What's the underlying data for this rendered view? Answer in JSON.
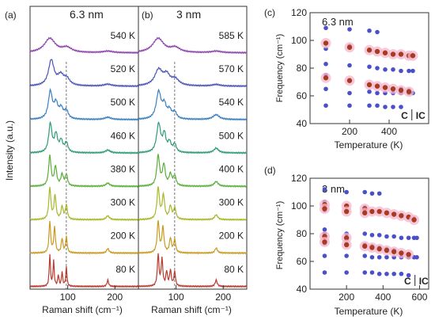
{
  "chart_data": [
    {
      "id": "a",
      "type": "line",
      "panel_label": "(a)",
      "title": "6.3 nm",
      "xlabel": "Raman shift (cm⁻¹)",
      "ylabel": "Intensity (a.u.)",
      "xlim": [
        20,
        250
      ],
      "xticks": [
        100,
        200
      ],
      "dashed_line_x": 97,
      "series": [
        {
          "name": "540 K",
          "color": "#8e44ad",
          "peaks": [
            [
              62,
              0.45,
              14
            ],
            [
              98,
              0.15,
              12
            ],
            [
              185,
              0.05,
              12
            ]
          ]
        },
        {
          "name": "520 K",
          "color": "#4a55b8",
          "peaks": [
            [
              65,
              0.8,
              7
            ],
            [
              85,
              0.3,
              8
            ],
            [
              98,
              0.2,
              8
            ],
            [
              185,
              0.06,
              10
            ]
          ]
        },
        {
          "name": "500 K",
          "color": "#3a7fc0",
          "peaks": [
            [
              63,
              0.85,
              5
            ],
            [
              75,
              0.45,
              5
            ],
            [
              86,
              0.3,
              5
            ],
            [
              97,
              0.25,
              5
            ],
            [
              185,
              0.07,
              8
            ]
          ]
        },
        {
          "name": "460 K",
          "color": "#2e9a7a",
          "peaks": [
            [
              63,
              0.9,
              4
            ],
            [
              75,
              0.55,
              4
            ],
            [
              86,
              0.35,
              4
            ],
            [
              97,
              0.3,
              4
            ],
            [
              185,
              0.09,
              6
            ]
          ]
        },
        {
          "name": "380 K",
          "color": "#5aae3a",
          "peaks": [
            [
              62,
              0.95,
              3
            ],
            [
              74,
              0.6,
              3
            ],
            [
              88,
              0.35,
              3
            ],
            [
              97,
              0.35,
              3
            ],
            [
              185,
              0.1,
              5
            ]
          ]
        },
        {
          "name": "300 K",
          "color": "#a8b828",
          "peaks": [
            [
              62,
              1.0,
              2.5
            ],
            [
              73,
              0.75,
              2.5
            ],
            [
              88,
              0.4,
              2.5
            ],
            [
              97,
              0.45,
              2.5
            ],
            [
              185,
              0.12,
              4
            ]
          ]
        },
        {
          "name": "200 K",
          "color": "#c99a20",
          "peaks": [
            [
              62,
              1.0,
              2
            ],
            [
              72,
              0.8,
              2
            ],
            [
              88,
              0.45,
              2
            ],
            [
              97,
              0.5,
              2
            ],
            [
              185,
              0.14,
              3
            ]
          ]
        },
        {
          "name": "80 K",
          "color": "#b83a2e",
          "peaks": [
            [
              62,
              1.0,
              1.5
            ],
            [
              70,
              0.8,
              1.5
            ],
            [
              80,
              0.35,
              1.5
            ],
            [
              88,
              0.45,
              1.5
            ],
            [
              97,
              0.6,
              1.5
            ],
            [
              185,
              0.2,
              2
            ]
          ]
        }
      ]
    },
    {
      "id": "b",
      "type": "line",
      "panel_label": "(b)",
      "title": "3 nm",
      "xlabel": "Raman shift (cm⁻¹)",
      "xlim": [
        20,
        250
      ],
      "xticks": [
        100,
        200
      ],
      "dashed_line_x": 97,
      "series": [
        {
          "name": "585 K",
          "color": "#8e44ad",
          "peaks": [
            [
              62,
              0.45,
              14
            ],
            [
              98,
              0.15,
              12
            ],
            [
              185,
              0.05,
              12
            ]
          ]
        },
        {
          "name": "570 K",
          "color": "#4a55b8",
          "peaks": [
            [
              63,
              0.5,
              10
            ],
            [
              80,
              0.3,
              8
            ],
            [
              98,
              0.2,
              10
            ],
            [
              185,
              0.05,
              10
            ]
          ]
        },
        {
          "name": "540 K",
          "color": "#3a7fc0",
          "peaks": [
            [
              63,
              0.85,
              6
            ],
            [
              75,
              0.4,
              5
            ],
            [
              86,
              0.25,
              5
            ],
            [
              97,
              0.2,
              5
            ],
            [
              185,
              0.15,
              8
            ]
          ]
        },
        {
          "name": "500 K",
          "color": "#2e9a7a",
          "peaks": [
            [
              63,
              0.9,
              5
            ],
            [
              75,
              0.55,
              4
            ],
            [
              86,
              0.3,
              4
            ],
            [
              97,
              0.25,
              4
            ],
            [
              185,
              0.15,
              6
            ]
          ]
        },
        {
          "name": "400 K",
          "color": "#5aae3a",
          "peaks": [
            [
              62,
              0.95,
              3.5
            ],
            [
              74,
              0.65,
              3.5
            ],
            [
              88,
              0.35,
              3.5
            ],
            [
              97,
              0.3,
              3.5
            ],
            [
              185,
              0.15,
              5
            ]
          ]
        },
        {
          "name": "300 K",
          "color": "#a8b828",
          "peaks": [
            [
              62,
              1.0,
              3
            ],
            [
              73,
              0.75,
              3
            ],
            [
              88,
              0.4,
              3
            ],
            [
              97,
              0.35,
              3
            ],
            [
              185,
              0.15,
              4
            ]
          ]
        },
        {
          "name": "200 K",
          "color": "#c99a20",
          "peaks": [
            [
              62,
              1.0,
              2.5
            ],
            [
              72,
              0.8,
              2.5
            ],
            [
              88,
              0.45,
              2.5
            ],
            [
              97,
              0.4,
              2.5
            ],
            [
              185,
              0.16,
              3
            ]
          ]
        },
        {
          "name": "80 K",
          "color": "#b83a2e",
          "peaks": [
            [
              62,
              1.0,
              2
            ],
            [
              70,
              0.85,
              2
            ],
            [
              80,
              0.45,
              2
            ],
            [
              88,
              0.5,
              2
            ],
            [
              97,
              0.45,
              2
            ],
            [
              185,
              0.2,
              2.5
            ]
          ]
        }
      ]
    },
    {
      "id": "c",
      "type": "scatter",
      "panel_label": "(c)",
      "title": "6.3 nm",
      "xlabel": "Temperature (K)",
      "ylabel": "Frequency (cm⁻¹)",
      "xlim": [
        0,
        600
      ],
      "ylim": [
        40,
        120
      ],
      "xticks": [
        200,
        400
      ],
      "yticks": [
        40,
        60,
        80,
        100,
        120
      ],
      "phase_labels": [
        "C",
        "IC"
      ],
      "phase_boundary_x": 515,
      "series": [
        {
          "marker": "blue",
          "points": [
            [
              80,
              109
            ],
            [
              80,
              94
            ],
            [
              80,
              83
            ],
            [
              80,
              75
            ],
            [
              80,
              65
            ],
            [
              80,
              53
            ],
            [
              200,
              108
            ],
            [
              200,
              96
            ],
            [
              200,
              82
            ],
            [
              200,
              71
            ],
            [
              200,
              62
            ],
            [
              200,
              53
            ],
            [
              300,
              107
            ],
            [
              300,
              93
            ],
            [
              300,
              81
            ],
            [
              300,
              68
            ],
            [
              300,
              63
            ],
            [
              300,
              53
            ],
            [
              340,
              106
            ],
            [
              340,
              92
            ],
            [
              340,
              80
            ],
            [
              340,
              67
            ],
            [
              340,
              62
            ],
            [
              340,
              53
            ],
            [
              380,
              91
            ],
            [
              380,
              79
            ],
            [
              380,
              66
            ],
            [
              380,
              62
            ],
            [
              380,
              52
            ],
            [
              420,
              90
            ],
            [
              420,
              79
            ],
            [
              420,
              65
            ],
            [
              420,
              62
            ],
            [
              420,
              52
            ],
            [
              460,
              90
            ],
            [
              460,
              78
            ],
            [
              460,
              65
            ],
            [
              460,
              62
            ],
            [
              460,
              52
            ],
            [
              500,
              89
            ],
            [
              500,
              78
            ],
            [
              500,
              64
            ],
            [
              500,
              62
            ],
            [
              520,
              89
            ],
            [
              520,
              78
            ],
            [
              520,
              62
            ]
          ]
        },
        {
          "marker": "red",
          "points": [
            [
              80,
              98
            ],
            [
              80,
              73
            ],
            [
              200,
              95
            ],
            [
              200,
              71
            ],
            [
              300,
              93
            ],
            [
              300,
              68
            ],
            [
              340,
              92
            ],
            [
              340,
              67
            ],
            [
              380,
              91
            ],
            [
              380,
              66
            ],
            [
              420,
              90
            ],
            [
              420,
              65
            ],
            [
              460,
              90
            ],
            [
              460,
              64
            ],
            [
              500,
              89
            ],
            [
              500,
              63
            ],
            [
              520,
              89
            ]
          ]
        }
      ]
    },
    {
      "id": "d",
      "type": "scatter",
      "panel_label": "(d)",
      "title": "3 nm",
      "xlabel": "Temperature (K)",
      "ylabel": "Frequency (cm⁻¹)",
      "xlim": [
        0,
        650
      ],
      "ylim": [
        40,
        120
      ],
      "xticks": [
        200,
        400,
        600
      ],
      "yticks": [
        40,
        60,
        80,
        100,
        120
      ],
      "phase_labels": [
        "C",
        "IC"
      ],
      "phase_boundary_x": 575,
      "series": [
        {
          "marker": "blue",
          "points": [
            [
              80,
              112
            ],
            [
              80,
              103
            ],
            [
              80,
              97
            ],
            [
              80,
              83
            ],
            [
              80,
              80
            ],
            [
              80,
              73
            ],
            [
              80,
              64
            ],
            [
              80,
              52
            ],
            [
              200,
              110
            ],
            [
              200,
              100
            ],
            [
              200,
              96
            ],
            [
              200,
              80
            ],
            [
              200,
              75
            ],
            [
              200,
              64
            ],
            [
              200,
              52
            ],
            [
              300,
              110
            ],
            [
              300,
              99
            ],
            [
              300,
              95
            ],
            [
              300,
              80
            ],
            [
              300,
              72
            ],
            [
              300,
              64
            ],
            [
              300,
              52
            ],
            [
              340,
              109
            ],
            [
              340,
              96
            ],
            [
              340,
              79
            ],
            [
              340,
              71
            ],
            [
              340,
              63
            ],
            [
              340,
              52
            ],
            [
              380,
              109
            ],
            [
              380,
              96
            ],
            [
              380,
              79
            ],
            [
              380,
              70
            ],
            [
              380,
              63
            ],
            [
              380,
              51
            ],
            [
              420,
              95
            ],
            [
              420,
              78
            ],
            [
              420,
              69
            ],
            [
              420,
              63
            ],
            [
              420,
              51
            ],
            [
              460,
              94
            ],
            [
              460,
              78
            ],
            [
              460,
              68
            ],
            [
              460,
              63
            ],
            [
              460,
              51
            ],
            [
              500,
              93
            ],
            [
              500,
              77
            ],
            [
              500,
              66
            ],
            [
              500,
              63
            ],
            [
              500,
              51
            ],
            [
              540,
              92
            ],
            [
              540,
              77
            ],
            [
              540,
              65
            ],
            [
              540,
              63
            ],
            [
              540,
              50
            ],
            [
              570,
              91
            ],
            [
              570,
              77
            ],
            [
              570,
              63
            ],
            [
              585,
              77
            ],
            [
              585,
              63
            ]
          ]
        },
        {
          "marker": "red",
          "points": [
            [
              80,
              101
            ],
            [
              80,
              98
            ],
            [
              80,
              78
            ],
            [
              80,
              74
            ],
            [
              200,
              100
            ],
            [
              200,
              96
            ],
            [
              200,
              77
            ],
            [
              200,
              72
            ],
            [
              300,
              98
            ],
            [
              300,
              95
            ],
            [
              300,
              71
            ],
            [
              340,
              96
            ],
            [
              340,
              70
            ],
            [
              380,
              96
            ],
            [
              380,
              69
            ],
            [
              420,
              95
            ],
            [
              420,
              68
            ],
            [
              460,
              94
            ],
            [
              460,
              67
            ],
            [
              500,
              93
            ],
            [
              500,
              66
            ],
            [
              540,
              92
            ],
            [
              540,
              65
            ],
            [
              570,
              90
            ]
          ]
        }
      ]
    }
  ],
  "colors": {
    "blue_marker": "#4a50c8",
    "red_marker": "#a83a22",
    "halo": "#f5b8cc"
  }
}
